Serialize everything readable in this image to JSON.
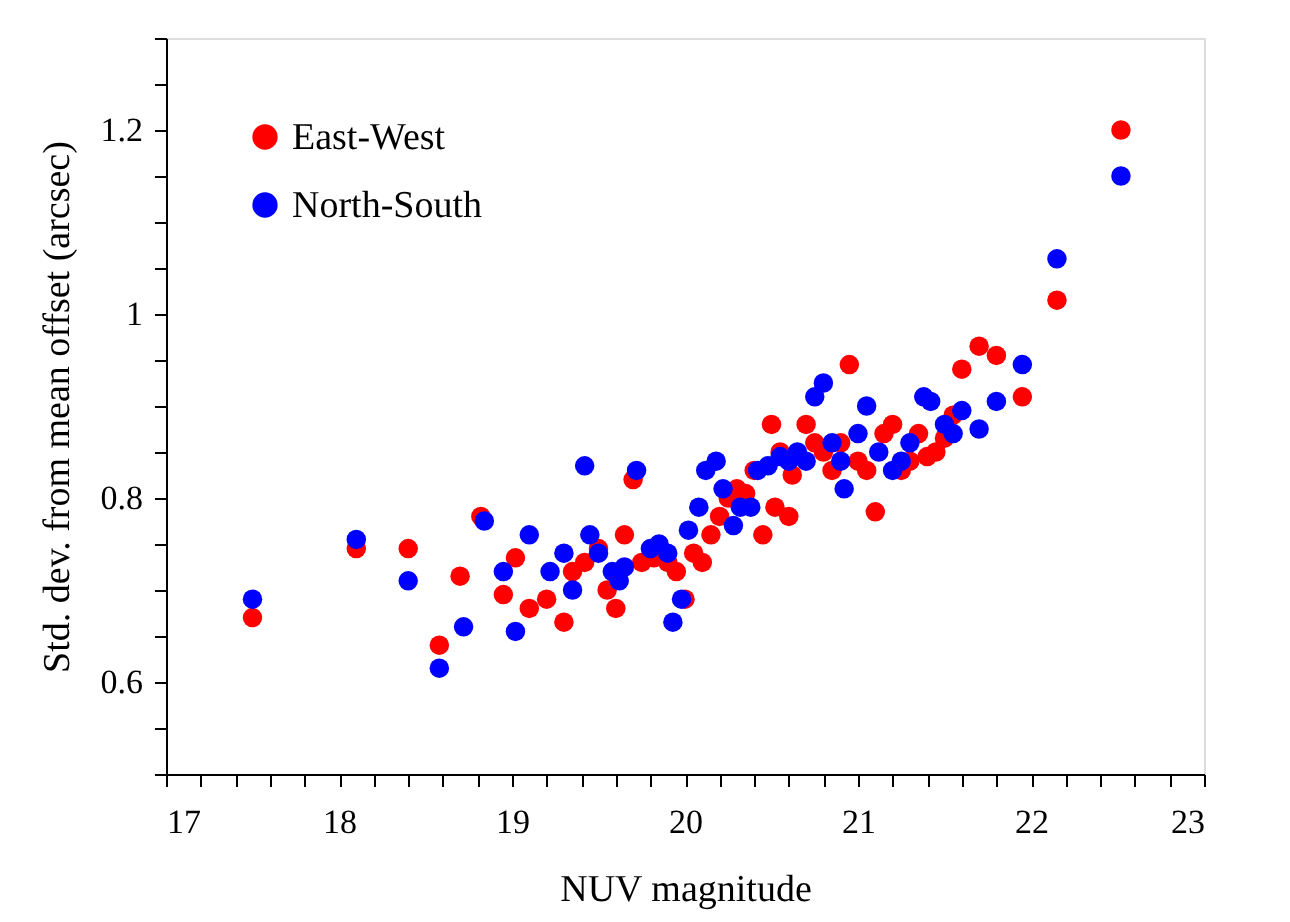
{
  "chart_data": {
    "type": "scatter",
    "xlabel": "NUV magnitude",
    "ylabel": "Std. dev. from mean offset (arcsec)",
    "xlim": [
      17,
      23
    ],
    "ylim": [
      0.5,
      1.3
    ],
    "xticks": [
      17,
      {
        "value": 17.2,
        "label": null
      },
      {
        "value": 17.4,
        "label": null
      },
      {
        "value": 17.6,
        "label": null
      },
      {
        "value": 17.8,
        "label": null
      },
      18,
      {
        "value": 18.2,
        "label": null
      },
      {
        "value": 18.4,
        "label": null
      },
      {
        "value": 18.6,
        "label": null
      },
      {
        "value": 18.8,
        "label": null
      },
      19,
      {
        "value": 19.2,
        "label": null
      },
      {
        "value": 19.4,
        "label": null
      },
      {
        "value": 19.6,
        "label": null
      },
      {
        "value": 19.8,
        "label": null
      },
      20,
      {
        "value": 20.2,
        "label": null
      },
      {
        "value": 20.4,
        "label": null
      },
      {
        "value": 20.6,
        "label": null
      },
      {
        "value": 20.8,
        "label": null
      },
      21,
      {
        "value": 21.2,
        "label": null
      },
      {
        "value": 21.4,
        "label": null
      },
      {
        "value": 21.6,
        "label": null
      },
      {
        "value": 21.8,
        "label": null
      },
      22,
      {
        "value": 22.2,
        "label": null
      },
      {
        "value": 22.4,
        "label": null
      },
      {
        "value": 22.6,
        "label": null
      },
      {
        "value": 22.8,
        "label": null
      },
      23
    ],
    "yticks": [
      {
        "value": 0.5,
        "label": null
      },
      {
        "value": 0.55,
        "label": null
      },
      0.6,
      {
        "value": 0.65,
        "label": null
      },
      {
        "value": 0.7,
        "label": null
      },
      {
        "value": 0.75,
        "label": null
      },
      0.8,
      {
        "value": 0.85,
        "label": null
      },
      {
        "value": 0.9,
        "label": null
      },
      {
        "value": 0.95,
        "label": null
      },
      1,
      {
        "value": 1.05,
        "label": null
      },
      {
        "value": 1.1,
        "label": null
      },
      {
        "value": 1.15,
        "label": null
      },
      1.2,
      {
        "value": 1.25,
        "label": null
      },
      {
        "value": 1.3,
        "label": null
      }
    ],
    "grid": false,
    "legend": "top left",
    "marker": "circle",
    "series": [
      {
        "name": "East-West",
        "color": "#ff0000",
        "x": [
          17.5,
          18.1,
          18.4,
          18.58,
          18.7,
          18.82,
          18.95,
          19.02,
          19.1,
          19.2,
          19.3,
          19.35,
          19.42,
          19.5,
          19.55,
          19.6,
          19.65,
          19.7,
          19.75,
          19.82,
          19.9,
          19.95,
          20.0,
          20.05,
          20.1,
          20.15,
          20.2,
          20.25,
          20.3,
          20.35,
          20.4,
          20.45,
          20.5,
          20.52,
          20.55,
          20.6,
          20.62,
          20.7,
          20.75,
          20.8,
          20.85,
          20.9,
          20.95,
          21.0,
          21.05,
          21.1,
          21.15,
          21.2,
          21.25,
          21.3,
          21.35,
          21.4,
          21.45,
          21.5,
          21.55,
          21.6,
          21.7,
          21.8,
          21.95,
          22.15,
          22.52
        ],
        "values": [
          0.67,
          0.745,
          0.745,
          0.64,
          0.715,
          0.78,
          0.695,
          0.735,
          0.68,
          0.69,
          0.665,
          0.72,
          0.73,
          0.745,
          0.7,
          0.68,
          0.76,
          0.82,
          0.73,
          0.735,
          0.73,
          0.72,
          0.69,
          0.74,
          0.73,
          0.76,
          0.78,
          0.8,
          0.81,
          0.805,
          0.83,
          0.76,
          0.88,
          0.79,
          0.85,
          0.78,
          0.825,
          0.88,
          0.86,
          0.85,
          0.83,
          0.86,
          0.945,
          0.84,
          0.83,
          0.785,
          0.87,
          0.88,
          0.83,
          0.84,
          0.87,
          0.845,
          0.85,
          0.865,
          0.89,
          0.94,
          0.965,
          0.955,
          0.91,
          1.015,
          1.2
        ]
      },
      {
        "name": "North-South",
        "color": "#0000ff",
        "x": [
          17.5,
          18.1,
          18.4,
          18.58,
          18.72,
          18.84,
          18.95,
          19.02,
          19.1,
          19.22,
          19.3,
          19.35,
          19.42,
          19.45,
          19.5,
          19.58,
          19.62,
          19.65,
          19.72,
          19.8,
          19.85,
          19.9,
          19.93,
          19.98,
          20.02,
          20.08,
          20.12,
          20.18,
          20.22,
          20.28,
          20.32,
          20.38,
          20.42,
          20.48,
          20.55,
          20.6,
          20.65,
          20.7,
          20.75,
          20.8,
          20.85,
          20.9,
          20.92,
          21.0,
          21.05,
          21.12,
          21.2,
          21.25,
          21.3,
          21.38,
          21.42,
          21.5,
          21.55,
          21.6,
          21.7,
          21.8,
          21.95,
          22.15,
          22.52
        ],
        "values": [
          0.69,
          0.755,
          0.71,
          0.615,
          0.66,
          0.775,
          0.72,
          0.655,
          0.76,
          0.72,
          0.74,
          0.7,
          0.835,
          0.76,
          0.74,
          0.72,
          0.71,
          0.725,
          0.83,
          0.745,
          0.75,
          0.74,
          0.665,
          0.69,
          0.765,
          0.79,
          0.83,
          0.84,
          0.81,
          0.77,
          0.79,
          0.79,
          0.83,
          0.835,
          0.845,
          0.84,
          0.85,
          0.84,
          0.91,
          0.925,
          0.86,
          0.84,
          0.81,
          0.87,
          0.9,
          0.85,
          0.83,
          0.84,
          0.86,
          0.91,
          0.905,
          0.88,
          0.87,
          0.895,
          0.875,
          0.905,
          0.945,
          1.06,
          1.15
        ]
      }
    ]
  }
}
